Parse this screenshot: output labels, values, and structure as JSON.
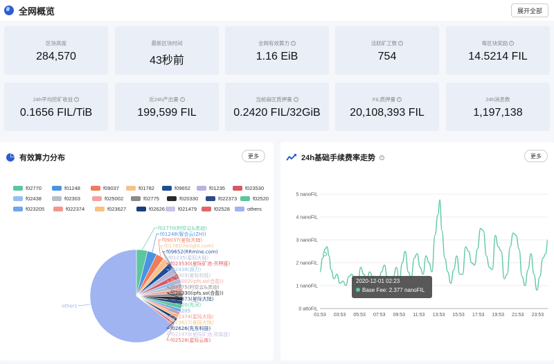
{
  "header": {
    "title": "全网概览",
    "expand_label": "展开全部"
  },
  "stats": [
    {
      "label": "区块高度",
      "value": "284,570",
      "info": false
    },
    {
      "label": "最新区块时间",
      "value": "43秒前",
      "info": false
    },
    {
      "label": "全网有效算力",
      "value": "1.16 EiB",
      "info": true
    },
    {
      "label": "活跃矿工数",
      "value": "754",
      "info": true
    },
    {
      "label": "每区块奖励",
      "value": "14.5214 FIL",
      "info": true
    },
    {
      "label": "24h平均挖矿收益",
      "value": "0.1656 FIL/TiB",
      "info": true
    },
    {
      "label": "近24h产出量",
      "value": "199,599 FIL",
      "info": true
    },
    {
      "label": "当前扇区质押量",
      "value": "0.2420 FIL/32GiB",
      "info": true
    },
    {
      "label": "FIL质押量",
      "value": "20,108,393 FIL",
      "info": true
    },
    {
      "label": "24h消息数",
      "value": "1,197,138",
      "info": false
    }
  ],
  "power_panel": {
    "title": "有效算力分布",
    "more_label": "更多",
    "legend": [
      {
        "name": "f02770",
        "color": "#5cc6a0"
      },
      {
        "name": "f01248",
        "color": "#4a93e0"
      },
      {
        "name": "f09037",
        "color": "#f07a5c"
      },
      {
        "name": "f01782",
        "color": "#f7c28a"
      },
      {
        "name": "f09652",
        "color": "#1d4e94"
      },
      {
        "name": "f01235",
        "color": "#b7b5de"
      },
      {
        "name": "f023530",
        "color": "#d6595f"
      },
      {
        "name": "f02438",
        "color": "#94c0ee"
      },
      {
        "name": "f02303",
        "color": "#b9bec8"
      },
      {
        "name": "f025002",
        "color": "#f3a3a1"
      },
      {
        "name": "f02775",
        "color": "#8b8b8b"
      },
      {
        "name": "f020330",
        "color": "#2a2a2a"
      },
      {
        "name": "f022373",
        "color": "#2e4a86"
      },
      {
        "name": "f02520",
        "color": "#5cc6a0"
      },
      {
        "name": "f023205",
        "color": "#6fa6e6"
      },
      {
        "name": "f022374",
        "color": "#f3978c"
      },
      {
        "name": "f023627",
        "color": "#f6c27d"
      },
      {
        "name": "f02626",
        "color": "#183f7c"
      },
      {
        "name": "f021479",
        "color": "#c7c4e6"
      },
      {
        "name": "f02528",
        "color": "#e06868"
      },
      {
        "name": "others",
        "color": "#9fb4f0"
      }
    ],
    "pie_labels": [
      {
        "text": "f02770(时空云&灵动)",
        "color": "#5cc6a0"
      },
      {
        "text": "f01248(智合云(ZH))",
        "color": "#4a93e0"
      },
      {
        "text": "f09037(星际大陆)",
        "color": "#f07a5c"
      },
      {
        "text": "f01782(helight.com)",
        "color": "#f7c28a"
      },
      {
        "text": "f09652(RRmine.com)",
        "color": "#1d4e94"
      },
      {
        "text": "f01235(星际大陆)",
        "color": "#b7b5de"
      },
      {
        "text": "f023530(星际矿池-天秤座)",
        "color": "#d6595f"
      },
      {
        "text": "f02438(源力)",
        "color": "#94c0ee"
      },
      {
        "text": "f02303(星际科技)",
        "color": "#b9bec8"
      },
      {
        "text": "f025002(ipfs.so(合盈))",
        "color": "#f3a3a1"
      },
      {
        "text": "f02775(时空云&灵动)",
        "color": "#8b8b8b"
      },
      {
        "text": "f020330(ipfs.so(合盈))",
        "color": "#2a2a2a"
      },
      {
        "text": "f022373(星际大陆)",
        "color": "#2e4a86"
      },
      {
        "text": "f02520(先河)",
        "color": "#5cc6a0"
      },
      {
        "text": "f023205",
        "color": "#6fa6e6"
      },
      {
        "text": "f022374(星际大陆)",
        "color": "#f3978c"
      },
      {
        "text": "f023627(星际大陆)",
        "color": "#f6c27d"
      },
      {
        "text": "f02626(先东科技)",
        "color": "#183f7c"
      },
      {
        "text": "f021479(星际矿池-双鱼座)",
        "color": "#c7c4e6"
      },
      {
        "text": "f02528(星际云库)",
        "color": "#e06868"
      }
    ],
    "others_label": "others"
  },
  "fee_panel": {
    "title": "24h基础手续费率走势",
    "more_label": "更多",
    "tooltip": {
      "time": "2020-12-01 02:23",
      "series": "Base Fee",
      "value": "2.377 nanoFIL"
    }
  },
  "chart_data": {
    "type": "line",
    "title": "24h基础手续费率走势",
    "xlabel": "",
    "ylabel": "",
    "x_ticks": [
      "01:53",
      "03:53",
      "05:53",
      "07:53",
      "09:53",
      "11:53",
      "13:53",
      "15:53",
      "17:53",
      "19:53",
      "21:53",
      "23:53"
    ],
    "y_ticks": [
      "0 attoFIL",
      "1 nanoFIL",
      "2 nanoFIL",
      "3 nanoFIL",
      "4 nanoFIL",
      "5 nanoFIL"
    ],
    "ylim": [
      0,
      5
    ],
    "xlim_hours": [
      1.88,
      24.9
    ],
    "series": [
      {
        "name": "Base Fee",
        "color": "#5fc7a6",
        "x": [
          1.88,
          2.15,
          2.4,
          2.6,
          2.8,
          3.0,
          3.3,
          3.6,
          3.88,
          4.2,
          4.5,
          4.8,
          5.1,
          5.4,
          5.7,
          6.0,
          6.3,
          6.6,
          6.9,
          7.2,
          7.5,
          7.8,
          8.1,
          8.4,
          8.7,
          9.0,
          9.3,
          9.6,
          9.9,
          10.2,
          10.5,
          10.8,
          11.1,
          11.4,
          11.7,
          12.0,
          12.3,
          12.6,
          12.9,
          13.2,
          13.5,
          13.8,
          14.0,
          14.2,
          14.5,
          14.8,
          15.1,
          15.4,
          15.7,
          16.0,
          16.3,
          16.6,
          16.9,
          17.2,
          17.5,
          17.8,
          18.1,
          18.4,
          18.7,
          19.0,
          19.3,
          19.6,
          19.9,
          20.2,
          20.5,
          20.8,
          21.1,
          21.4,
          21.7,
          22.0,
          22.3,
          22.6,
          22.9,
          23.2,
          23.5,
          23.8,
          24.1,
          24.4,
          24.7,
          24.9
        ],
        "y": [
          1.6,
          2.2,
          2.6,
          2.7,
          2.3,
          1.7,
          1.3,
          1.5,
          1.1,
          1.2,
          1.0,
          1.4,
          1.5,
          1.2,
          1.0,
          1.8,
          1.5,
          1.2,
          1.6,
          1.4,
          1.3,
          1.1,
          1.6,
          1.9,
          1.3,
          1.2,
          1.4,
          1.8,
          1.2,
          2.0,
          2.5,
          1.6,
          1.3,
          2.2,
          2.4,
          1.8,
          1.5,
          2.3,
          2.0,
          1.6,
          3.2,
          4.1,
          4.75,
          3.4,
          2.2,
          1.6,
          1.1,
          1.7,
          2.3,
          1.5,
          1.5,
          2.7,
          2.5,
          2.0,
          1.9,
          2.6,
          3.5,
          3.4,
          2.3,
          1.8,
          1.7,
          3.2,
          2.7,
          2.5,
          1.3,
          1.5,
          2.7,
          3.3,
          3.2,
          2.6,
          1.4,
          1.0,
          1.7,
          2.4,
          1.5,
          0.8,
          1.4,
          2.2,
          2.4,
          3.0
        ]
      }
    ],
    "tooltip_point": {
      "x": 2.38,
      "y": 2.377
    }
  }
}
